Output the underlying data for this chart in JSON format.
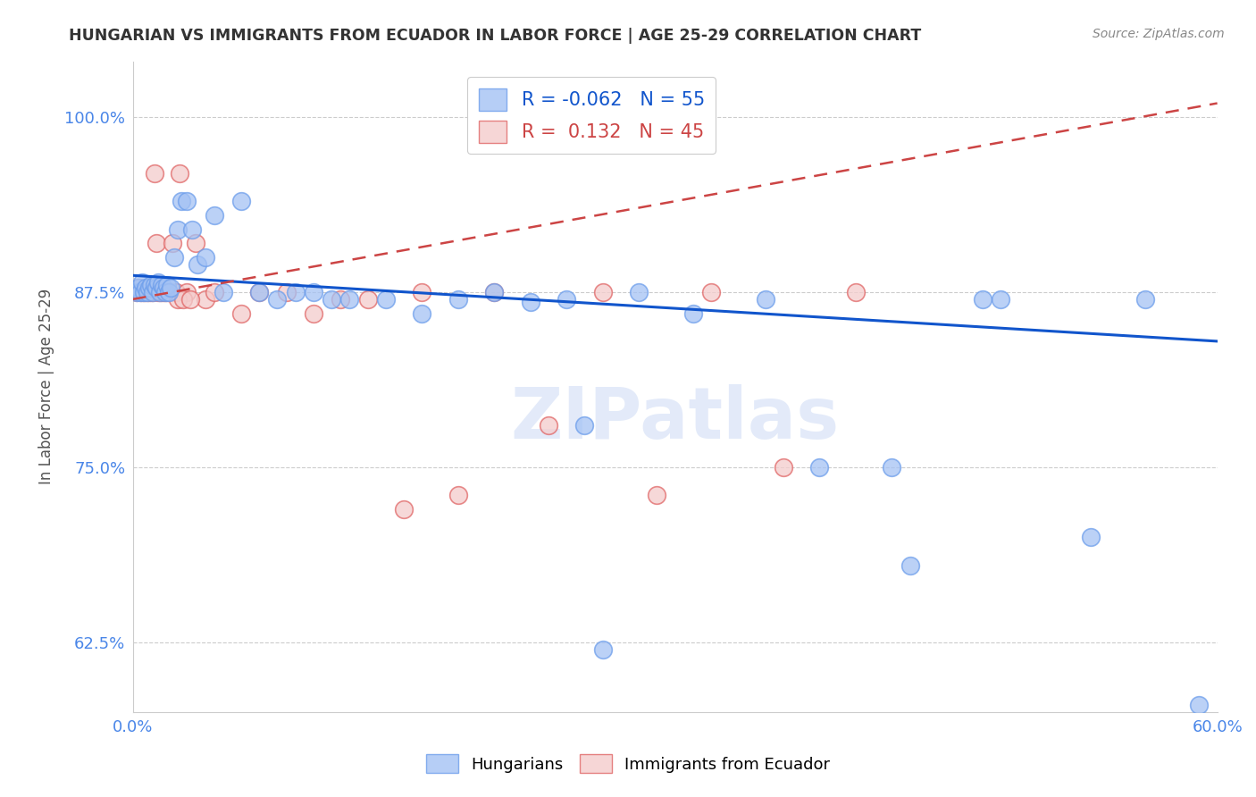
{
  "title": "HUNGARIAN VS IMMIGRANTS FROM ECUADOR IN LABOR FORCE | AGE 25-29 CORRELATION CHART",
  "source": "Source: ZipAtlas.com",
  "ylabel": "In Labor Force | Age 25-29",
  "xlabel": "",
  "background_color": "#ffffff",
  "grid_color": "#cccccc",
  "blue_color": "#a4c2f4",
  "pink_color": "#f4cccc",
  "blue_edge_color": "#6d9eeb",
  "pink_edge_color": "#e06666",
  "blue_line_color": "#1155cc",
  "pink_line_color": "#cc4444",
  "title_color": "#333333",
  "axis_label_color": "#555555",
  "tick_color": "#4a86e8",
  "R_blue": -0.062,
  "N_blue": 55,
  "R_pink": 0.132,
  "N_pink": 45,
  "xlim": [
    0.0,
    0.6
  ],
  "ylim": [
    0.575,
    1.04
  ],
  "yticks": [
    0.625,
    0.75,
    0.875,
    1.0
  ],
  "ytick_labels": [
    "62.5%",
    "75.0%",
    "87.5%",
    "100.0%"
  ],
  "xticks": [
    0.0,
    0.1,
    0.2,
    0.3,
    0.4,
    0.5,
    0.6
  ],
  "xtick_labels": [
    "0.0%",
    "",
    "",
    "",
    "",
    "",
    "60.0%"
  ],
  "blue_x": [
    0.002,
    0.003,
    0.004,
    0.005,
    0.006,
    0.007,
    0.008,
    0.009,
    0.01,
    0.011,
    0.012,
    0.013,
    0.014,
    0.015,
    0.016,
    0.017,
    0.018,
    0.019,
    0.02,
    0.021,
    0.023,
    0.025,
    0.027,
    0.03,
    0.033,
    0.036,
    0.04,
    0.045,
    0.05,
    0.06,
    0.07,
    0.08,
    0.09,
    0.1,
    0.11,
    0.12,
    0.14,
    0.16,
    0.18,
    0.2,
    0.22,
    0.24,
    0.28,
    0.31,
    0.35,
    0.38,
    0.42,
    0.48,
    0.53,
    0.56,
    0.59,
    0.25,
    0.26,
    0.43,
    0.47
  ],
  "blue_y": [
    0.875,
    0.878,
    0.875,
    0.882,
    0.875,
    0.878,
    0.875,
    0.878,
    0.88,
    0.875,
    0.88,
    0.878,
    0.882,
    0.875,
    0.88,
    0.878,
    0.875,
    0.88,
    0.875,
    0.878,
    0.9,
    0.92,
    0.94,
    0.94,
    0.92,
    0.895,
    0.9,
    0.93,
    0.875,
    0.94,
    0.875,
    0.87,
    0.875,
    0.875,
    0.87,
    0.87,
    0.87,
    0.86,
    0.87,
    0.875,
    0.868,
    0.87,
    0.875,
    0.86,
    0.87,
    0.75,
    0.75,
    0.87,
    0.7,
    0.87,
    0.58,
    0.78,
    0.62,
    0.68,
    0.87
  ],
  "pink_x": [
    0.002,
    0.003,
    0.004,
    0.005,
    0.006,
    0.007,
    0.008,
    0.009,
    0.01,
    0.011,
    0.012,
    0.013,
    0.014,
    0.015,
    0.016,
    0.017,
    0.018,
    0.019,
    0.02,
    0.022,
    0.024,
    0.026,
    0.03,
    0.035,
    0.04,
    0.045,
    0.06,
    0.07,
    0.085,
    0.1,
    0.115,
    0.13,
    0.15,
    0.18,
    0.2,
    0.23,
    0.26,
    0.29,
    0.32,
    0.36,
    0.4,
    0.16,
    0.025,
    0.028,
    0.032
  ],
  "pink_y": [
    0.875,
    0.878,
    0.875,
    0.875,
    0.875,
    0.875,
    0.875,
    0.875,
    0.875,
    0.875,
    0.96,
    0.91,
    0.875,
    0.875,
    0.875,
    0.875,
    0.875,
    0.875,
    0.875,
    0.91,
    0.875,
    0.96,
    0.875,
    0.91,
    0.87,
    0.875,
    0.86,
    0.875,
    0.875,
    0.86,
    0.87,
    0.87,
    0.72,
    0.73,
    0.875,
    0.78,
    0.875,
    0.73,
    0.875,
    0.75,
    0.875,
    0.875,
    0.87,
    0.87,
    0.87
  ],
  "blue_line_x0": 0.0,
  "blue_line_y0": 0.887,
  "blue_line_x1": 0.6,
  "blue_line_y1": 0.84,
  "pink_line_x0": 0.0,
  "pink_line_y0": 0.87,
  "pink_line_x1": 0.6,
  "pink_line_y1": 1.01
}
